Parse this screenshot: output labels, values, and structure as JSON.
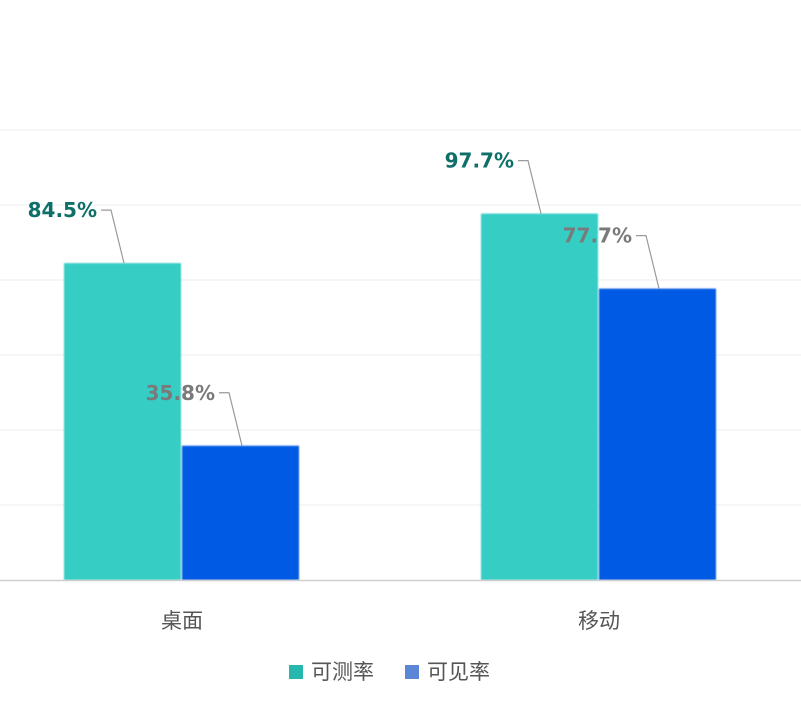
{
  "chart_data": {
    "type": "bar",
    "categories": [
      "桌面",
      "移动"
    ],
    "series": [
      {
        "name": "可测率",
        "values": [
          84.5,
          97.7
        ],
        "labels": [
          "84.5%",
          "97.7%"
        ],
        "color": "#35cdc4",
        "label_color": "#0e6e68"
      },
      {
        "name": "可见率",
        "values": [
          35.8,
          77.7
        ],
        "labels": [
          "35.8%",
          "77.7%"
        ],
        "color": "#025ae3",
        "label_color": "#7a7a7a"
      }
    ],
    "ylim": [
      0,
      120
    ],
    "grid": true,
    "legend": "bottom-center",
    "legend_colors": [
      "#26b8ad",
      "#5b86d6"
    ],
    "title": "",
    "xlabel": "",
    "ylabel": ""
  }
}
